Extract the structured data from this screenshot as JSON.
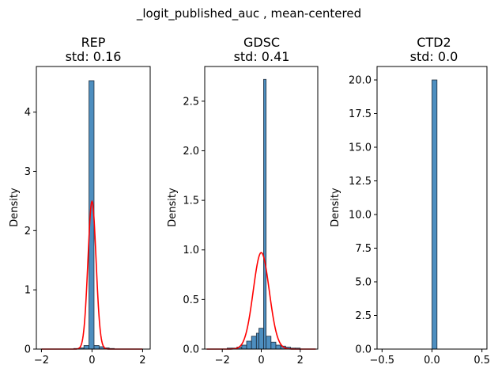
{
  "figure": {
    "suptitle": "_logit_published_auc , mean-centered"
  },
  "chart_data": [
    {
      "type": "histogram",
      "title_line1": "REP",
      "title_line2": "std: 0.16",
      "ylabel": "Density",
      "xlabel": "",
      "xlim": [
        -2.2,
        2.3
      ],
      "ylim": [
        0,
        4.77
      ],
      "xticks": [
        -2,
        0,
        2
      ],
      "yticks": [
        0,
        1,
        2,
        3,
        4
      ],
      "bin_width": 0.2,
      "bins": [
        {
          "x0": -0.72,
          "x1": -0.52,
          "density": 0.01
        },
        {
          "x0": -0.52,
          "x1": -0.32,
          "density": 0.02
        },
        {
          "x0": -0.32,
          "x1": -0.12,
          "density": 0.06
        },
        {
          "x0": -0.12,
          "x1": 0.08,
          "density": 4.53
        },
        {
          "x0": 0.08,
          "x1": 0.28,
          "density": 0.06
        },
        {
          "x0": 0.28,
          "x1": 0.48,
          "density": 0.04
        },
        {
          "x0": 0.48,
          "x1": 0.68,
          "density": 0.02
        },
        {
          "x0": 0.68,
          "x1": 0.88,
          "density": 0.01
        }
      ],
      "kde": {
        "color": "#ff0000",
        "mean": 0.0,
        "std": 0.16,
        "x_range": [
          -2.0,
          2.0
        ]
      }
    },
    {
      "type": "histogram",
      "title_line1": "GDSC",
      "title_line2": "std: 0.41",
      "ylabel": "Density",
      "xlabel": "",
      "xlim": [
        -2.9,
        2.9
      ],
      "ylim": [
        0,
        2.85
      ],
      "xticks": [
        -2,
        0,
        2
      ],
      "yticks": [
        0,
        0.5,
        1.0,
        1.5,
        2.0,
        2.5
      ],
      "ytick_labels": [
        "0.0",
        "0.5",
        "1.0",
        "1.5",
        "2.0",
        "2.5"
      ],
      "bin_width": 0.25,
      "bins": [
        {
          "x0": -1.75,
          "x1": -1.5,
          "density": 0.01
        },
        {
          "x0": -1.5,
          "x1": -1.25,
          "density": 0.01
        },
        {
          "x0": -1.25,
          "x1": -1.0,
          "density": 0.02
        },
        {
          "x0": -1.0,
          "x1": -0.75,
          "density": 0.04
        },
        {
          "x0": -0.75,
          "x1": -0.5,
          "density": 0.08
        },
        {
          "x0": -0.5,
          "x1": -0.25,
          "density": 0.13
        },
        {
          "x0": -0.25,
          "x1": -0.12,
          "density": 0.16
        },
        {
          "x0": -0.12,
          "x1": 0.12,
          "density": 0.21
        },
        {
          "x0": 0.12,
          "x1": 0.25,
          "density": 2.72
        },
        {
          "x0": 0.25,
          "x1": 0.5,
          "density": 0.13
        },
        {
          "x0": 0.5,
          "x1": 0.75,
          "density": 0.07
        },
        {
          "x0": 0.75,
          "x1": 1.0,
          "density": 0.04
        },
        {
          "x0": 1.0,
          "x1": 1.25,
          "density": 0.03
        },
        {
          "x0": 1.25,
          "x1": 1.5,
          "density": 0.02
        },
        {
          "x0": 1.5,
          "x1": 1.75,
          "density": 0.01
        },
        {
          "x0": 1.75,
          "x1": 2.0,
          "density": 0.01
        }
      ],
      "kde": {
        "color": "#ff0000",
        "mean": 0.0,
        "std": 0.41,
        "x_range": [
          -2.8,
          2.8
        ]
      }
    },
    {
      "type": "histogram",
      "title_line1": "CTD2",
      "title_line2": "std: 0.0",
      "ylabel": "Density",
      "xlabel": "",
      "xlim": [
        -0.55,
        0.55
      ],
      "ylim": [
        0,
        21
      ],
      "xticks": [
        -0.5,
        0.0,
        0.5
      ],
      "xtick_labels": [
        "−0.5",
        "0.0",
        "0.5"
      ],
      "yticks": [
        0,
        2.5,
        5.0,
        7.5,
        10.0,
        12.5,
        15.0,
        17.5,
        20.0
      ],
      "ytick_labels": [
        "0.0",
        "2.5",
        "5.0",
        "7.5",
        "10.0",
        "12.5",
        "15.0",
        "17.5",
        "20.0"
      ],
      "bins": [
        {
          "x0": 0.0,
          "x1": 0.05,
          "density": 20.0
        }
      ]
    }
  ],
  "style": {
    "bar_fill": "#3a82b8",
    "bar_edge": "#1f2f3f",
    "kde_color": "#ff0000"
  }
}
